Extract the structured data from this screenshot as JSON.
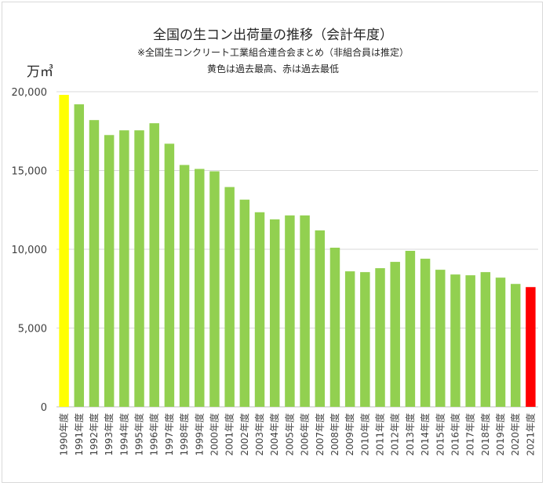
{
  "chart_data": {
    "type": "bar",
    "title": "全国の生コン出荷量の推移（会計年度）",
    "subtitle": "※全国生コンクリート工業組合連合会まとめ（非組合員は推定）",
    "note": "黄色は過去最高、赤は過去最低",
    "ylabel": "万㎥",
    "xlabel": "",
    "ylim": [
      0,
      20000
    ],
    "yticks": [
      0,
      5000,
      10000,
      15000,
      20000
    ],
    "ytick_labels": [
      "0",
      "5,000",
      "10,000",
      "15,000",
      "20,000"
    ],
    "grid": true,
    "categories": [
      "1990年度",
      "1991年度",
      "1992年度",
      "1993年度",
      "1994年度",
      "1995年度",
      "1996年度",
      "1997年度",
      "1998年度",
      "1999年度",
      "2000年度",
      "2001年度",
      "2002年度",
      "2003年度",
      "2004年度",
      "2005年度",
      "2006年度",
      "2007年度",
      "2008年度",
      "2009年度",
      "2010年度",
      "2011年度",
      "2012年度",
      "2013年度",
      "2014年度",
      "2015年度",
      "2016年度",
      "2017年度",
      "2018年度",
      "2019年度",
      "2020年度",
      "2021年度"
    ],
    "values": [
      19800,
      19200,
      18200,
      17250,
      17550,
      17550,
      18000,
      16700,
      15350,
      15100,
      14950,
      13950,
      13150,
      12350,
      11900,
      12150,
      12150,
      11200,
      10100,
      8600,
      8550,
      8800,
      9200,
      9900,
      9400,
      8700,
      8400,
      8350,
      8550,
      8200,
      7800,
      7600
    ],
    "colors": {
      "default": "#92d050",
      "highest": "#ffff00",
      "lowest": "#ff0000"
    },
    "highlight": {
      "highest": "1990年度",
      "lowest": "2021年度"
    }
  }
}
